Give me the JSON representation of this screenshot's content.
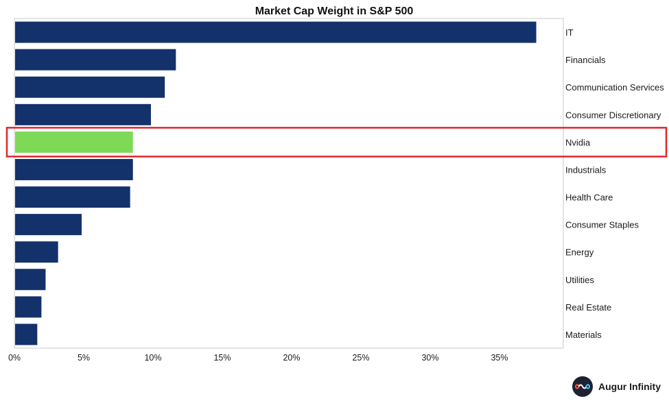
{
  "chart_data": {
    "type": "bar",
    "orientation": "horizontal",
    "title": "Market Cap Weight in S&P 500",
    "xlabel": "",
    "ylabel": "",
    "categories": [
      "IT",
      "Financials",
      "Communication Services",
      "Consumer Discretionary",
      "Nvidia",
      "Industrials",
      "Health Care",
      "Consumer Staples",
      "Energy",
      "Utilities",
      "Real Estate",
      "Materials"
    ],
    "values": [
      37.6,
      11.6,
      10.8,
      9.8,
      8.5,
      8.5,
      8.3,
      4.8,
      3.1,
      2.2,
      1.9,
      1.6
    ],
    "xlim": [
      0,
      40
    ],
    "xticks": [
      "0%",
      "5%",
      "10%",
      "15%",
      "20%",
      "25%",
      "30%",
      "35%"
    ],
    "xtick_values": [
      0,
      5,
      10,
      15,
      20,
      25,
      30,
      35
    ],
    "grid": false,
    "highlight": {
      "category": "Nvidia",
      "bar_color": "#7ed957",
      "box_color": "#e0262c"
    },
    "bar_color": "#13316a"
  },
  "brand": {
    "name": "Augur Infinity",
    "icon": "infinity-icon"
  }
}
